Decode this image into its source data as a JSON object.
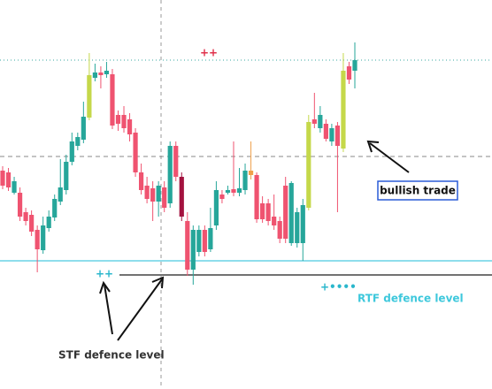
{
  "chart_data": {
    "type": "candlestick",
    "ylim": [
      0,
      440
    ],
    "categories": [
      null,
      null,
      null,
      null,
      null,
      null,
      null,
      null,
      null,
      null,
      null,
      null,
      null,
      null,
      null,
      null,
      null,
      null,
      null,
      null,
      null,
      null,
      null,
      null,
      null,
      null,
      null,
      null,
      null,
      null,
      null,
      null,
      null,
      null,
      null,
      null,
      null,
      null,
      null,
      null,
      null,
      null,
      null,
      null,
      null,
      null,
      null,
      null,
      null,
      null,
      null,
      null,
      null,
      null,
      null,
      null,
      null,
      null,
      null,
      null,
      null,
      null
    ],
    "open": [
      247,
      245,
      222,
      222,
      200,
      197,
      180,
      157,
      182,
      194,
      212,
      225,
      257,
      275,
      282,
      307,
      352,
      358,
      356,
      356,
      310,
      310,
      305,
      290,
      245,
      230,
      227,
      212,
      228,
      210,
      275,
      240,
      190,
      135,
      155,
      180,
      158,
      185,
      220,
      222,
      226,
      222,
      225,
      247,
      242,
      210,
      210,
      195,
      190,
      230,
      165,
      165,
      165,
      205,
      305,
      295,
      300,
      280,
      298,
      272,
      365,
      360
    ],
    "high": [
      252,
      250,
      240,
      228,
      205,
      202,
      185,
      195,
      202,
      220,
      260,
      265,
      290,
      290,
      325,
      380,
      368,
      365,
      370,
      362,
      315,
      320,
      312,
      295,
      255,
      240,
      235,
      235,
      235,
      280,
      280,
      245,
      200,
      185,
      185,
      185,
      205,
      235,
      225,
      230,
      280,
      250,
      255,
      280,
      245,
      218,
      215,
      220,
      195,
      240,
      235,
      205,
      215,
      310,
      335,
      320,
      305,
      300,
      302,
      380,
      370,
      392
    ],
    "low": [
      226,
      224,
      220,
      190,
      185,
      173,
      132,
      153,
      178,
      190,
      208,
      220,
      253,
      270,
      278,
      304,
      348,
      340,
      352,
      294,
      292,
      290,
      280,
      240,
      220,
      210,
      190,
      195,
      200,
      205,
      235,
      190,
      128,
      118,
      150,
      150,
      155,
      180,
      210,
      220,
      218,
      218,
      220,
      237,
      188,
      188,
      185,
      180,
      165,
      165,
      162,
      160,
      145,
      202,
      295,
      290,
      280,
      275,
      200,
      268,
      345,
      340
    ],
    "close": [
      230,
      228,
      235,
      195,
      190,
      178,
      158,
      185,
      195,
      215,
      228,
      257,
      280,
      285,
      308,
      355,
      358,
      355,
      360,
      298,
      300,
      295,
      288,
      245,
      225,
      215,
      212,
      230,
      205,
      275,
      240,
      195,
      135,
      180,
      180,
      155,
      182,
      225,
      215,
      225,
      222,
      227,
      247,
      242,
      192,
      192,
      190,
      185,
      170,
      170,
      233,
      200,
      208,
      302,
      300,
      310,
      283,
      295,
      275,
      360,
      350,
      372
    ],
    "candle_colors": [
      "#ef5370",
      "#ef5370",
      "#26a69a",
      "#ef5370",
      "#ef5370",
      "#ef5370",
      "#ef5370",
      "#26a69a",
      "#26a69a",
      "#26a69a",
      "#26a69a",
      "#26a69a",
      "#26a69a",
      "#26a69a",
      "#26a69a",
      "#c5d84a",
      "#26a69a",
      "#ef5370",
      "#26a69a",
      "#ef5370",
      "#ef5370",
      "#ef5370",
      "#ef5370",
      "#ef5370",
      "#ef5370",
      "#ef5370",
      "#ef5370",
      "#26a69a",
      "#ef5370",
      "#26a69a",
      "#ef5370",
      "#a3123f",
      "#ef5370",
      "#26a69a",
      "#26a69a",
      "#ef5370",
      "#26a69a",
      "#26a69a",
      "#ef5370",
      "#26a69a",
      "#ef5370",
      "#26a69a",
      "#26a69a",
      "#f0a04b",
      "#ef5370",
      "#ef5370",
      "#ef5370",
      "#ef5370",
      "#ef5370",
      "#ef5370",
      "#26a69a",
      "#26a69a",
      "#26a69a",
      "#c5d84a",
      "#ef5370",
      "#26a69a",
      "#ef5370",
      "#26a69a",
      "#ef5370",
      "#c5d84a",
      "#ef5370",
      "#26a69a"
    ],
    "annotations": [
      "++",
      "++",
      "+••••",
      "bullish trade",
      "RTF defence level",
      "STF defence level"
    ]
  }
}
